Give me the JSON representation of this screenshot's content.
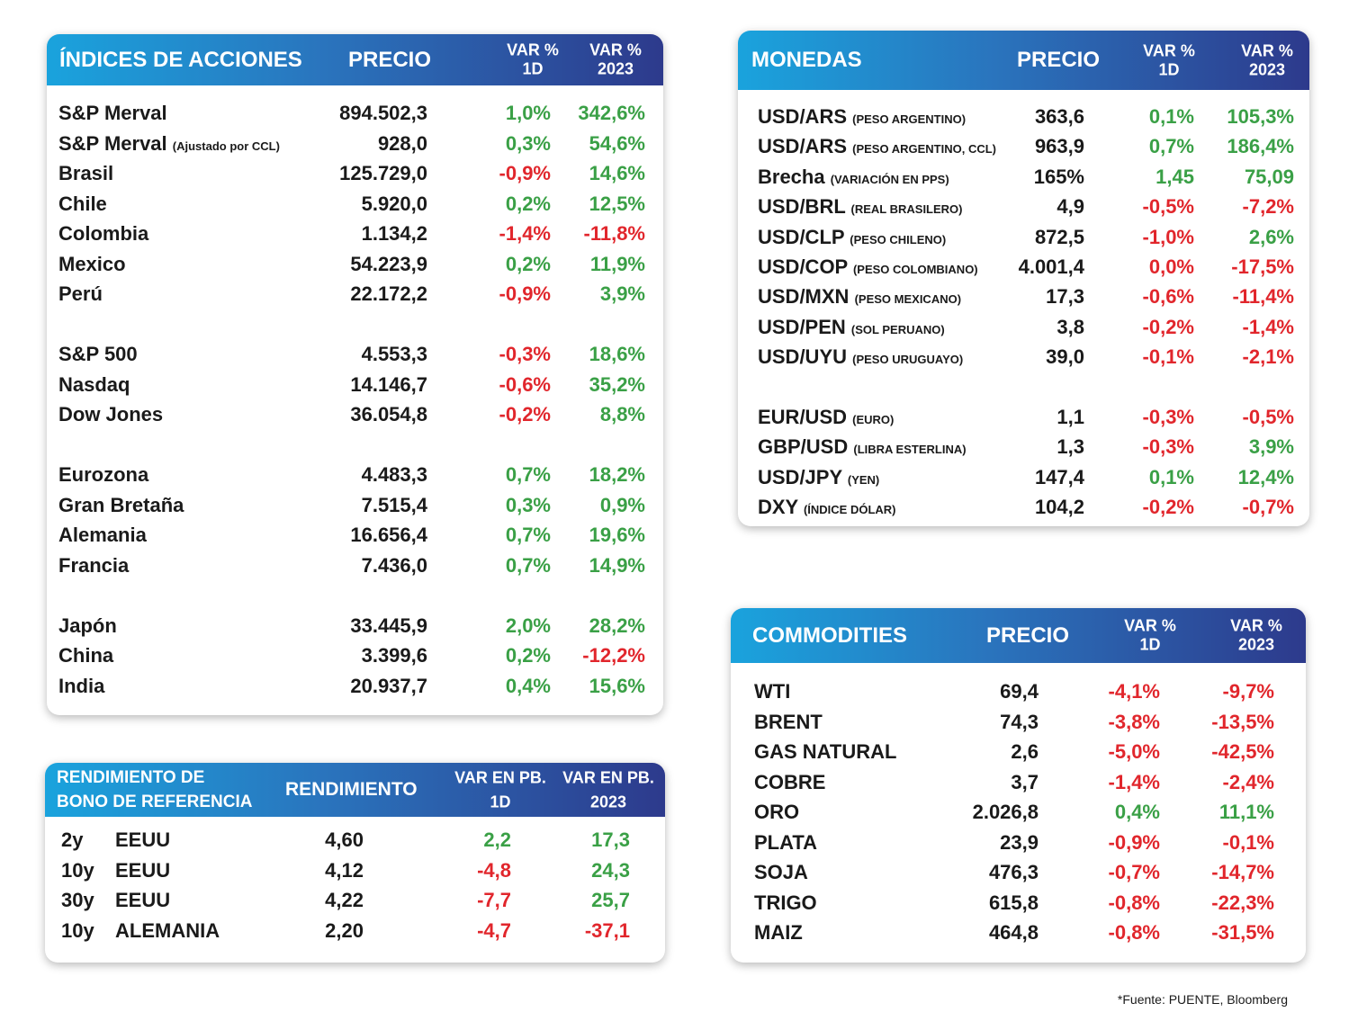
{
  "indices": {
    "header": {
      "title": "ÍNDICES DE ACCIONES",
      "price": "PRECIO",
      "d1": [
        "VAR %",
        "1D"
      ],
      "y": [
        "VAR %",
        "2023"
      ]
    },
    "groups": [
      [
        {
          "name": "S&P Merval",
          "price": "894.502,3",
          "d1": "1,0%",
          "y": "342,6%"
        },
        {
          "name": "S&P Merval",
          "note": "(Ajustado por CCL)",
          "price": "928,0",
          "d1": "0,3%",
          "y": "54,6%"
        },
        {
          "name": "Brasil",
          "price": "125.729,0",
          "d1": "-0,9%",
          "y": "14,6%"
        },
        {
          "name": "Chile",
          "price": "5.920,0",
          "d1": "0,2%",
          "y": "12,5%"
        },
        {
          "name": "Colombia",
          "price": "1.134,2",
          "d1": "-1,4%",
          "y": "-11,8%"
        },
        {
          "name": "Mexico",
          "price": "54.223,9",
          "d1": "0,2%",
          "y": "11,9%"
        },
        {
          "name": "Perú",
          "price": "22.172,2",
          "d1": "-0,9%",
          "y": "3,9%"
        }
      ],
      [
        {
          "name": "S&P 500",
          "price": "4.553,3",
          "d1": "-0,3%",
          "y": "18,6%"
        },
        {
          "name": "Nasdaq",
          "price": "14.146,7",
          "d1": "-0,6%",
          "y": "35,2%"
        },
        {
          "name": "Dow Jones",
          "price": "36.054,8",
          "d1": "-0,2%",
          "y": "8,8%"
        }
      ],
      [
        {
          "name": "Eurozona",
          "price": "4.483,3",
          "d1": "0,7%",
          "y": "18,2%"
        },
        {
          "name": "Gran Bretaña",
          "price": "7.515,4",
          "d1": "0,3%",
          "y": "0,9%"
        },
        {
          "name": "Alemania",
          "price": "16.656,4",
          "d1": "0,7%",
          "y": "19,6%"
        },
        {
          "name": "Francia",
          "price": "7.436,0",
          "d1": "0,7%",
          "y": "14,9%"
        }
      ],
      [
        {
          "name": "Japón",
          "price": "33.445,9",
          "d1": "2,0%",
          "y": "28,2%"
        },
        {
          "name": "China",
          "price": "3.399,6",
          "d1": "0,2%",
          "y": "-12,2%"
        },
        {
          "name": "India",
          "price": "20.937,7",
          "d1": "0,4%",
          "y": "15,6%"
        }
      ]
    ]
  },
  "monedas": {
    "header": {
      "title": "MONEDAS",
      "price": "PRECIO",
      "d1": [
        "VAR %",
        "1D"
      ],
      "y": [
        "VAR %",
        "2023"
      ]
    },
    "groups": [
      [
        {
          "name": "USD/ARS",
          "note": "(PESO ARGENTINO)",
          "price": "363,6",
          "d1": "0,1%",
          "y": "105,3%"
        },
        {
          "name": "USD/ARS",
          "note": "(PESO ARGENTINO, CCL)",
          "price": "963,9",
          "d1": "0,7%",
          "y": "186,4%"
        },
        {
          "name": "Brecha",
          "note": "(VARIACIÓN EN PPS)",
          "price": "165%",
          "d1": "1,45",
          "y": "75,09"
        },
        {
          "name": "USD/BRL",
          "note": "(REAL BRASILERO)",
          "price": "4,9",
          "d1": "-0,5%",
          "y": "-7,2%"
        },
        {
          "name": "USD/CLP",
          "note": "(PESO CHILENO)",
          "price": "872,5",
          "d1": "-1,0%",
          "y": "2,6%"
        },
        {
          "name": "USD/COP",
          "note": "(PESO COLOMBIANO)",
          "price": "4.001,4",
          "d1": "0,0%",
          "y": "-17,5%"
        },
        {
          "name": "USD/MXN",
          "note": "(PESO MEXICANO)",
          "price": "17,3",
          "d1": "-0,6%",
          "y": "-11,4%"
        },
        {
          "name": "USD/PEN",
          "note": "(SOL PERUANO)",
          "price": "3,8",
          "d1": "-0,2%",
          "y": "-1,4%"
        },
        {
          "name": "USD/UYU",
          "note": "(PESO URUGUAYO)",
          "price": "39,0",
          "d1": "-0,1%",
          "y": "-2,1%"
        }
      ],
      [
        {
          "name": "EUR/USD",
          "note": "(EURO)",
          "price": "1,1",
          "d1": "-0,3%",
          "y": "-0,5%"
        },
        {
          "name": "GBP/USD",
          "note": "(LIBRA ESTERLINA)",
          "price": "1,3",
          "d1": "-0,3%",
          "y": "3,9%"
        },
        {
          "name": "USD/JPY",
          "note": "(YEN)",
          "price": "147,4",
          "d1": "0,1%",
          "y": "12,4%"
        },
        {
          "name": "DXY",
          "note": "(ÍNDICE DÓLAR)",
          "price": "104,2",
          "d1": "-0,2%",
          "y": "-0,7%"
        }
      ]
    ]
  },
  "bonos": {
    "header": {
      "title": [
        "RENDIMIENTO DE",
        "BONO DE REFERENCIA"
      ],
      "price": "RENDIMIENTO",
      "d1": [
        "VAR EN PB.",
        "1D"
      ],
      "y": [
        "VAR EN PB.",
        "2023"
      ]
    },
    "groups": [
      [
        {
          "tenor": "2y",
          "name": "EEUU",
          "price": "4,60",
          "d1": "2,2",
          "y": "17,3"
        },
        {
          "tenor": "10y",
          "name": "EEUU",
          "price": "4,12",
          "d1": "-4,8",
          "y": "24,3"
        },
        {
          "tenor": "30y",
          "name": "EEUU",
          "price": "4,22",
          "d1": "-7,7",
          "y": "25,7"
        },
        {
          "tenor": "10y",
          "name": "ALEMANIA",
          "price": "2,20",
          "d1": "-4,7",
          "y": "-37,1"
        }
      ]
    ]
  },
  "commodities": {
    "header": {
      "title": "COMMODITIES",
      "price": "PRECIO",
      "d1": [
        "VAR %",
        "1D"
      ],
      "y": [
        "VAR %",
        "2023"
      ]
    },
    "groups": [
      [
        {
          "name": "WTI",
          "price": "69,4",
          "d1": "-4,1%",
          "y": "-9,7%"
        },
        {
          "name": "BRENT",
          "price": "74,3",
          "d1": "-3,8%",
          "y": "-13,5%"
        },
        {
          "name": "GAS NATURAL",
          "price": "2,6",
          "d1": "-5,0%",
          "y": "-42,5%"
        },
        {
          "name": "COBRE",
          "price": "3,7",
          "d1": "-1,4%",
          "y": "-2,4%"
        },
        {
          "name": "ORO",
          "price": "2.026,8",
          "d1": "0,4%",
          "y": "11,1%"
        },
        {
          "name": "PLATA",
          "price": "23,9",
          "d1": "-0,9%",
          "y": "-0,1%"
        },
        {
          "name": "SOJA",
          "price": "476,3",
          "d1": "-0,7%",
          "y": "-14,7%"
        },
        {
          "name": "TRIGO",
          "price": "615,8",
          "d1": "-0,8%",
          "y": "-22,3%"
        },
        {
          "name": "MAIZ",
          "price": "464,8",
          "d1": "-0,8%",
          "y": "-31,5%"
        }
      ]
    ]
  },
  "footnote": "*Fuente: PUENTE, Bloomberg"
}
